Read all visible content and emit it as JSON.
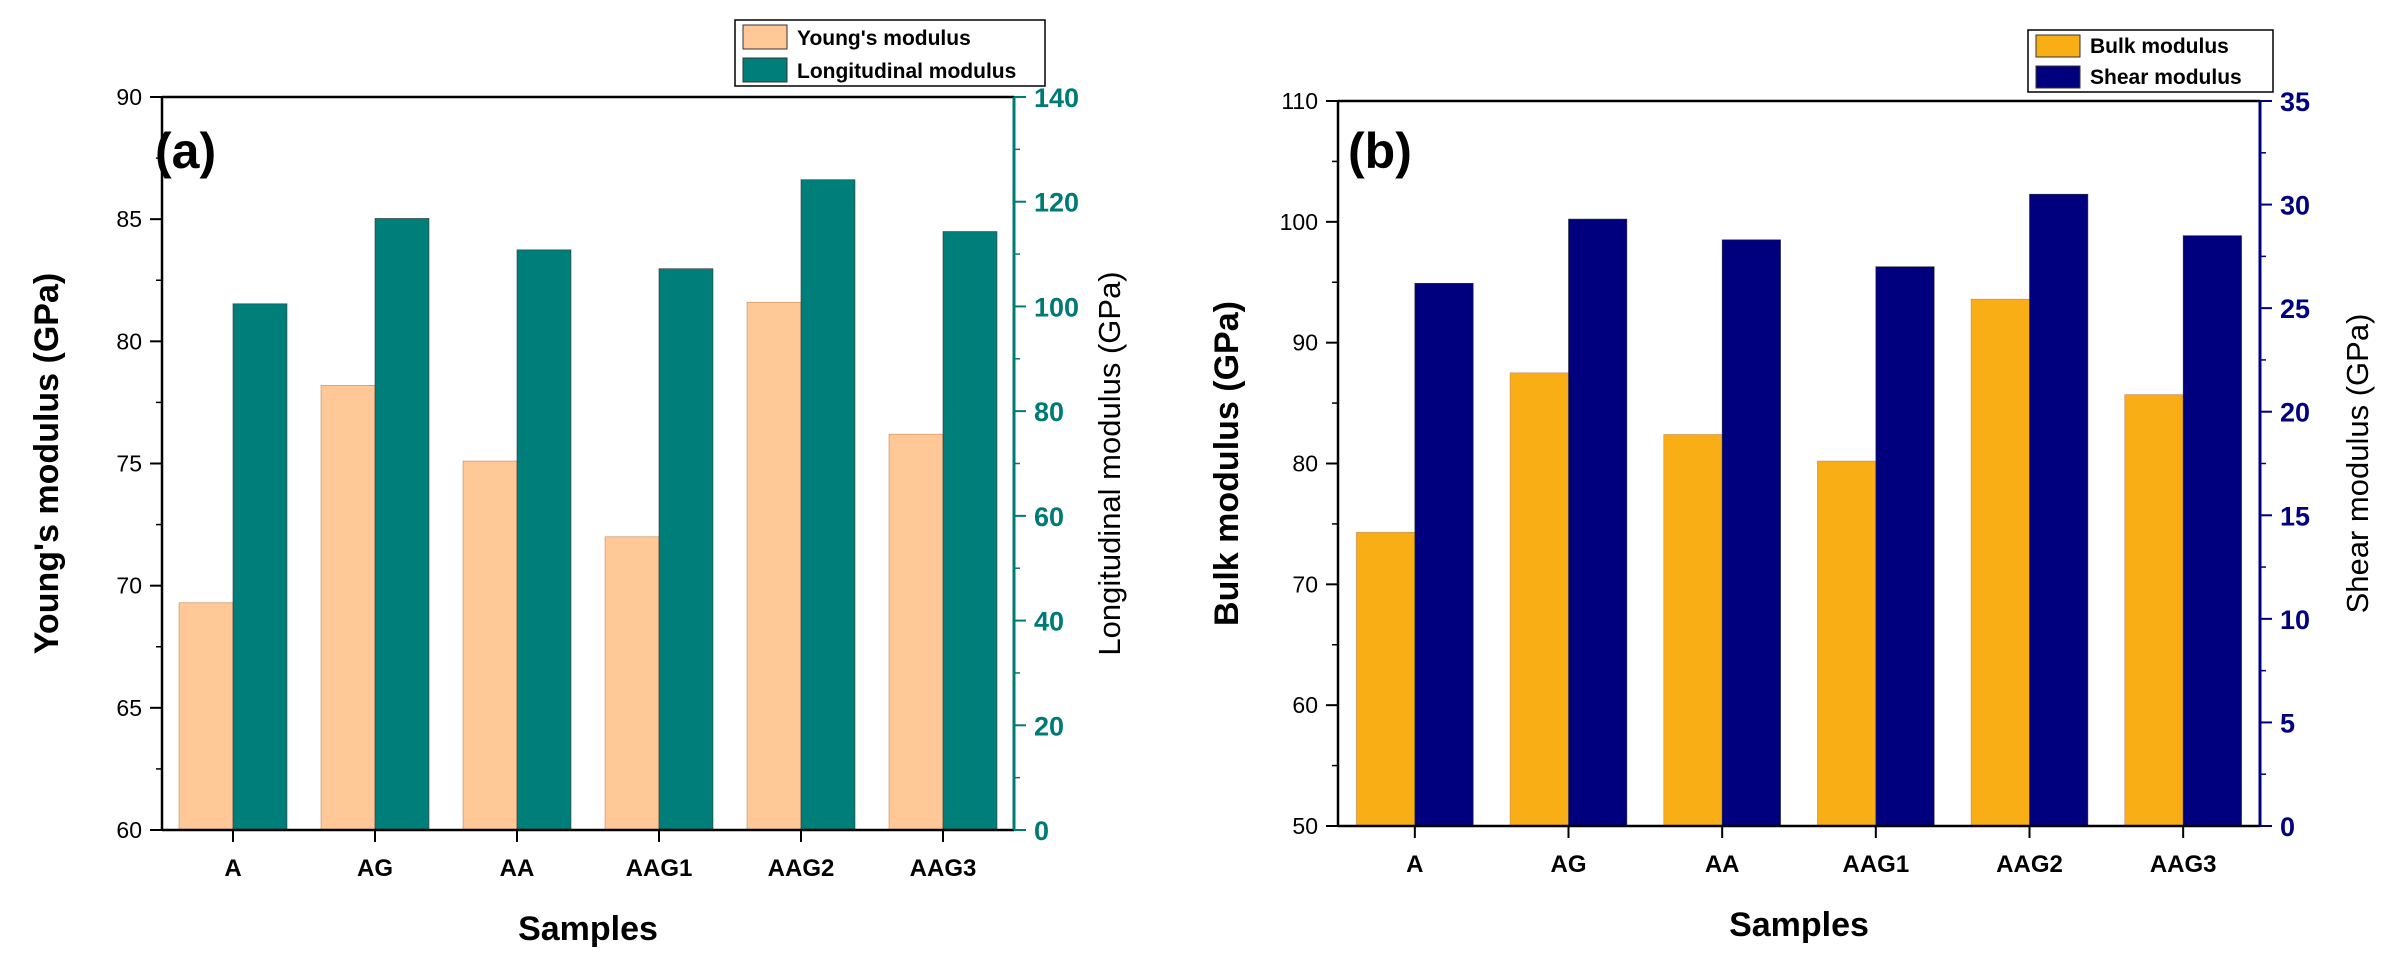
{
  "chart_data": [
    {
      "type": "bar",
      "panel_label": "(a)",
      "categories": [
        "A",
        "AG",
        "AA",
        "AAG1",
        "AAG2",
        "AAG3"
      ],
      "xlabel": "Samples",
      "ylabel": "Young's modulus (GPa)",
      "ylabel_right": "Longitudinal modulus (GPa)",
      "ylim": [
        60,
        90
      ],
      "ylim_right": [
        0,
        140
      ],
      "yticks": [
        60,
        65,
        70,
        75,
        80,
        85,
        90
      ],
      "yticks_right": [
        0,
        20,
        40,
        60,
        80,
        100,
        120,
        140
      ],
      "right_axis_color": "#007A74",
      "legend_position": "top-right",
      "series": [
        {
          "name": "Young's modulus",
          "axis": "left",
          "color": "#FFC896",
          "values": [
            69.3,
            78.2,
            75.1,
            72.0,
            81.6,
            76.2
          ]
        },
        {
          "name": "Longitudinal modulus",
          "axis": "right",
          "color": "#007F7A",
          "values": [
            100.5,
            116.8,
            110.8,
            107.2,
            124.2,
            114.3
          ]
        }
      ]
    },
    {
      "type": "bar",
      "panel_label": "(b)",
      "categories": [
        "A",
        "AG",
        "AA",
        "AAG1",
        "AAG2",
        "AAG3"
      ],
      "xlabel": "Samples",
      "ylabel": "Bulk modulus (GPa)",
      "ylabel_right": "Shear modulus (GPa)",
      "ylim": [
        50,
        110
      ],
      "ylim_right": [
        0,
        35
      ],
      "yticks": [
        50,
        60,
        70,
        80,
        90,
        100,
        110
      ],
      "yticks_right": [
        0,
        5,
        10,
        15,
        20,
        25,
        30,
        35
      ],
      "right_axis_color": "#000080",
      "legend_position": "top-right",
      "series": [
        {
          "name": "Bulk modulus",
          "axis": "left",
          "color": "#F9AE15",
          "values": [
            74.3,
            87.5,
            82.4,
            80.2,
            93.6,
            85.7
          ]
        },
        {
          "name": "Shear modulus",
          "axis": "right",
          "color": "#00007F",
          "values": [
            26.2,
            29.3,
            28.3,
            27.0,
            30.5,
            28.5
          ]
        }
      ]
    }
  ]
}
